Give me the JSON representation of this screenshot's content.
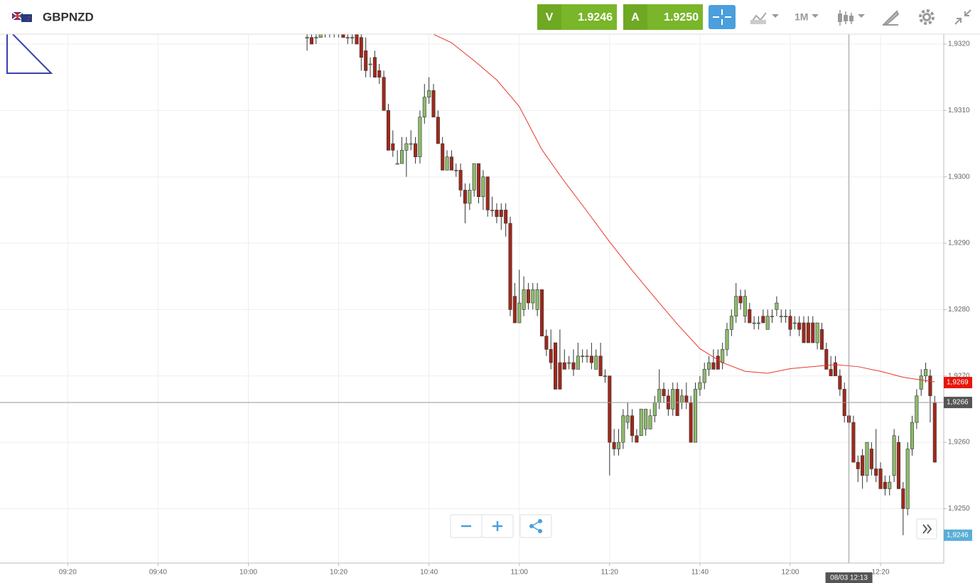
{
  "header": {
    "symbol": "GBPNZD",
    "sell_label": "V",
    "sell_price": 1.9246,
    "buy_label": "A",
    "buy_price": {
      "value": 1.925,
      "label": "1.9250"
    },
    "timeframe": "1M"
  },
  "chart_data": {
    "type": "candlestick",
    "x": [
      "10:13",
      "10:14",
      "10:15",
      "10:16",
      "10:17",
      "10:18",
      "10:19",
      "10:20",
      "10:21",
      "10:22",
      "10:23",
      "10:24",
      "10:25",
      "10:26",
      "10:27",
      "10:28",
      "10:29",
      "10:30",
      "10:31",
      "10:32",
      "10:33",
      "10:34",
      "10:35",
      "10:36",
      "10:37",
      "10:38",
      "10:39",
      "10:40",
      "10:41",
      "10:42",
      "10:43",
      "10:44",
      "10:45",
      "10:46",
      "10:47",
      "10:48",
      "10:49",
      "10:50",
      "10:51",
      "10:52",
      "10:53",
      "10:54",
      "10:55",
      "10:56",
      "10:57",
      "10:58",
      "10:59",
      "11:00",
      "11:01",
      "11:02",
      "11:03",
      "11:04",
      "11:05",
      "11:06",
      "11:07",
      "11:08",
      "11:09",
      "11:10",
      "11:11",
      "11:12",
      "11:13",
      "11:14",
      "11:15",
      "11:16",
      "11:17",
      "11:18",
      "11:19",
      "11:20",
      "11:21",
      "11:22",
      "11:23",
      "11:24",
      "11:25",
      "11:26",
      "11:27",
      "11:28",
      "11:29",
      "11:30",
      "11:31",
      "11:32",
      "11:33",
      "11:34",
      "11:35",
      "11:36",
      "11:37",
      "11:38",
      "11:39",
      "11:40",
      "11:41",
      "11:42",
      "11:43",
      "11:44",
      "11:45",
      "11:46",
      "11:47",
      "11:48",
      "11:49",
      "11:50",
      "11:51",
      "11:52",
      "11:53",
      "11:54",
      "11:55",
      "11:56",
      "11:57",
      "11:58",
      "11:59",
      "12:00",
      "12:01",
      "12:02",
      "12:03",
      "12:04",
      "12:05",
      "12:06",
      "12:07",
      "12:08",
      "12:09",
      "12:10",
      "12:11",
      "12:12",
      "12:13",
      "12:14",
      "12:15",
      "12:16",
      "12:17",
      "12:18",
      "12:19",
      "12:20",
      "12:21",
      "12:22",
      "12:23",
      "12:24",
      "12:25",
      "12:26",
      "12:27",
      "12:28",
      "12:29",
      "12:30",
      "12:31",
      "12:32"
    ],
    "candles": [
      [
        1.9321,
        1.9322,
        1.9319,
        1.9321
      ],
      [
        1.9321,
        1.9322,
        1.932,
        1.932
      ],
      [
        1.9321,
        1.9322,
        1.932,
        1.9321
      ],
      [
        1.9321,
        1.9322,
        1.9321,
        1.9322
      ],
      [
        1.9322,
        1.9323,
        1.9321,
        1.9322
      ],
      [
        1.9322,
        1.9323,
        1.9321,
        1.9322
      ],
      [
        1.9322,
        1.9323,
        1.9321,
        1.9322
      ],
      [
        1.9322,
        1.9323,
        1.9321,
        1.9322
      ],
      [
        1.9322,
        1.9322,
        1.9321,
        1.9321
      ],
      [
        1.9321,
        1.9322,
        1.932,
        1.9321
      ],
      [
        1.9321,
        1.9322,
        1.932,
        1.9321
      ],
      [
        1.9322,
        1.9323,
        1.932,
        1.932
      ],
      [
        1.9321,
        1.9322,
        1.9316,
        1.9318
      ],
      [
        1.9319,
        1.9321,
        1.9315,
        1.9316
      ],
      [
        1.9317,
        1.9318,
        1.9315,
        1.9317
      ],
      [
        1.9318,
        1.9319,
        1.9315,
        1.9315
      ],
      [
        1.9316,
        1.9317,
        1.9314,
        1.9315
      ],
      [
        1.9315,
        1.9316,
        1.931,
        1.931
      ],
      [
        1.931,
        1.9311,
        1.9304,
        1.9304
      ],
      [
        1.9305,
        1.9307,
        1.9303,
        1.9304
      ],
      [
        1.9302,
        1.9304,
        1.9302,
        1.9302
      ],
      [
        1.9302,
        1.9306,
        1.9302,
        1.9304
      ],
      [
        1.9304,
        1.9306,
        1.93,
        1.9305
      ],
      [
        1.9305,
        1.9307,
        1.9304,
        1.9305
      ],
      [
        1.9305,
        1.9306,
        1.9302,
        1.9303
      ],
      [
        1.9303,
        1.931,
        1.9302,
        1.9309
      ],
      [
        1.9309,
        1.9314,
        1.9308,
        1.9312
      ],
      [
        1.9312,
        1.9315,
        1.9311,
        1.9313
      ],
      [
        1.9313,
        1.9314,
        1.9309,
        1.9309
      ],
      [
        1.9309,
        1.931,
        1.9305,
        1.9305
      ],
      [
        1.9305,
        1.9306,
        1.9301,
        1.9301
      ],
      [
        1.9301,
        1.9304,
        1.9301,
        1.9303
      ],
      [
        1.9303,
        1.9304,
        1.9301,
        1.9301
      ],
      [
        1.9301,
        1.9302,
        1.93,
        1.9301
      ],
      [
        1.9301,
        1.9302,
        1.9297,
        1.9298
      ],
      [
        1.9298,
        1.9299,
        1.9293,
        1.9296
      ],
      [
        1.9296,
        1.9299,
        1.9295,
        1.9298
      ],
      [
        1.9298,
        1.9302,
        1.9297,
        1.9302
      ],
      [
        1.9302,
        1.9302,
        1.9296,
        1.9297
      ],
      [
        1.9297,
        1.9301,
        1.9295,
        1.93
      ],
      [
        1.93,
        1.93,
        1.9294,
        1.9295
      ],
      [
        1.9295,
        1.9297,
        1.9294,
        1.9295
      ],
      [
        1.9295,
        1.9296,
        1.9293,
        1.9294
      ],
      [
        1.9295,
        1.9296,
        1.9292,
        1.9294
      ],
      [
        1.9295,
        1.9296,
        1.9291,
        1.9293
      ],
      [
        1.9293,
        1.9294,
        1.9279,
        1.928
      ],
      [
        1.9282,
        1.9284,
        1.9278,
        1.9278
      ],
      [
        1.9278,
        1.9286,
        1.9278,
        1.9281
      ],
      [
        1.928,
        1.9285,
        1.9279,
        1.9283
      ],
      [
        1.9283,
        1.9284,
        1.928,
        1.9281
      ],
      [
        1.9281,
        1.9284,
        1.928,
        1.9283
      ],
      [
        1.928,
        1.9284,
        1.9279,
        1.9283
      ],
      [
        1.9283,
        1.9283,
        1.9276,
        1.9276
      ],
      [
        1.9276,
        1.9277,
        1.9273,
        1.9274
      ],
      [
        1.9274,
        1.9277,
        1.9271,
        1.9272
      ],
      [
        1.9275,
        1.9275,
        1.9268,
        1.9268
      ],
      [
        1.9272,
        1.9277,
        1.9268,
        1.9268
      ],
      [
        1.9272,
        1.9274,
        1.9271,
        1.9271
      ],
      [
        1.9272,
        1.9273,
        1.9271,
        1.9272
      ],
      [
        1.9272,
        1.9274,
        1.927,
        1.9271
      ],
      [
        1.9271,
        1.9275,
        1.9271,
        1.9273
      ],
      [
        1.9273,
        1.9274,
        1.9272,
        1.9273
      ],
      [
        1.9273,
        1.9274,
        1.9272,
        1.9273
      ],
      [
        1.9273,
        1.9275,
        1.9271,
        1.9272
      ],
      [
        1.9271,
        1.9274,
        1.9271,
        1.9273
      ],
      [
        1.9273,
        1.9275,
        1.927,
        1.927
      ],
      [
        1.927,
        1.9271,
        1.9269,
        1.927
      ],
      [
        1.927,
        1.927,
        1.9255,
        1.926
      ],
      [
        1.926,
        1.9262,
        1.9258,
        1.9259
      ],
      [
        1.9259,
        1.9262,
        1.9258,
        1.926
      ],
      [
        1.926,
        1.9265,
        1.9259,
        1.9264
      ],
      [
        1.9263,
        1.9266,
        1.9262,
        1.9264
      ],
      [
        1.9264,
        1.9265,
        1.926,
        1.9261
      ],
      [
        1.9261,
        1.9262,
        1.926,
        1.926
      ],
      [
        1.9261,
        1.9265,
        1.9261,
        1.9265
      ],
      [
        1.9262,
        1.9265,
        1.9261,
        1.9265
      ],
      [
        1.9262,
        1.9265,
        1.9262,
        1.9264
      ],
      [
        1.9264,
        1.9267,
        1.9263,
        1.9266
      ],
      [
        1.9266,
        1.9271,
        1.9265,
        1.9268
      ],
      [
        1.9268,
        1.9269,
        1.9266,
        1.9267
      ],
      [
        1.9267,
        1.9268,
        1.9264,
        1.9265
      ],
      [
        1.9265,
        1.9269,
        1.9264,
        1.9268
      ],
      [
        1.9268,
        1.9269,
        1.9264,
        1.9264
      ],
      [
        1.9266,
        1.9268,
        1.9265,
        1.9267
      ],
      [
        1.9267,
        1.9269,
        1.9265,
        1.9266
      ],
      [
        1.9266,
        1.9267,
        1.926,
        1.926
      ],
      [
        1.926,
        1.9269,
        1.926,
        1.9268
      ],
      [
        1.9268,
        1.927,
        1.9267,
        1.9269
      ],
      [
        1.9269,
        1.9272,
        1.9268,
        1.9271
      ],
      [
        1.9271,
        1.9273,
        1.927,
        1.9272
      ],
      [
        1.9272,
        1.9274,
        1.9271,
        1.9271
      ],
      [
        1.9273,
        1.9274,
        1.9271,
        1.9271
      ],
      [
        1.9272,
        1.9275,
        1.9271,
        1.9274
      ],
      [
        1.9274,
        1.9278,
        1.9273,
        1.9277
      ],
      [
        1.9277,
        1.928,
        1.9276,
        1.9279
      ],
      [
        1.9279,
        1.9284,
        1.9278,
        1.9282
      ],
      [
        1.9282,
        1.9283,
        1.928,
        1.9281
      ],
      [
        1.9279,
        1.9283,
        1.9278,
        1.9282
      ],
      [
        1.928,
        1.9281,
        1.9278,
        1.9278
      ],
      [
        1.9278,
        1.9279,
        1.9277,
        1.9278
      ],
      [
        1.9278,
        1.9279,
        1.9277,
        1.9278
      ],
      [
        1.9279,
        1.928,
        1.9278,
        1.9278
      ],
      [
        1.9277,
        1.928,
        1.9277,
        1.9279
      ],
      [
        1.9279,
        1.928,
        1.9278,
        1.9279
      ],
      [
        1.928,
        1.9282,
        1.9279,
        1.9281
      ],
      [
        1.9279,
        1.928,
        1.9278,
        1.9279
      ],
      [
        1.9279,
        1.928,
        1.9278,
        1.9279
      ],
      [
        1.9279,
        1.928,
        1.9276,
        1.9277
      ],
      [
        1.9278,
        1.9279,
        1.9277,
        1.9278
      ],
      [
        1.9278,
        1.9279,
        1.9276,
        1.9277
      ],
      [
        1.9278,
        1.9279,
        1.9275,
        1.9275
      ],
      [
        1.9278,
        1.9279,
        1.9275,
        1.9275
      ],
      [
        1.9278,
        1.9279,
        1.9275,
        1.9275
      ],
      [
        1.9275,
        1.9278,
        1.9274,
        1.9278
      ],
      [
        1.9277,
        1.9278,
        1.9274,
        1.9274
      ],
      [
        1.9274,
        1.9275,
        1.9271,
        1.9271
      ],
      [
        1.9271,
        1.9273,
        1.927,
        1.927
      ],
      [
        1.9272,
        1.9273,
        1.927,
        1.927
      ],
      [
        1.927,
        1.9271,
        1.9267,
        1.9268
      ],
      [
        1.9268,
        1.9269,
        1.9263,
        1.9264
      ],
      [
        1.9264,
        1.9265,
        1.9262,
        1.9263
      ],
      [
        1.9263,
        1.9264,
        1.9257,
        1.9257
      ],
      [
        1.9257,
        1.9258,
        1.9254,
        1.9256
      ],
      [
        1.9258,
        1.9259,
        1.9253,
        1.9255
      ],
      [
        1.9255,
        1.926,
        1.9254,
        1.926
      ],
      [
        1.9259,
        1.926,
        1.9255,
        1.9256
      ],
      [
        1.9256,
        1.9262,
        1.9254,
        1.9255
      ],
      [
        1.9256,
        1.9257,
        1.9253,
        1.9253
      ],
      [
        1.9254,
        1.9255,
        1.9252,
        1.9253
      ],
      [
        1.9253,
        1.9255,
        1.9252,
        1.9254
      ],
      [
        1.9255,
        1.9262,
        1.9254,
        1.9261
      ],
      [
        1.926,
        1.9261,
        1.9253,
        1.9253
      ],
      [
        1.9253,
        1.9254,
        1.9246,
        1.925
      ],
      [
        1.925,
        1.926,
        1.9249,
        1.9259
      ],
      [
        1.9259,
        1.9264,
        1.9258,
        1.9263
      ],
      [
        1.9263,
        1.9268,
        1.9262,
        1.9267
      ],
      [
        1.9268,
        1.9271,
        1.9267,
        1.927
      ],
      [
        1.927,
        1.9272,
        1.9269,
        1.9271
      ],
      [
        1.927,
        1.9271,
        1.9263,
        1.9267
      ],
      [
        1.9266,
        1.9267,
        1.9257,
        1.9257
      ]
    ],
    "up_color": "#8dbb6b",
    "down_color": "#a1281b",
    "overlay": {
      "type": "line",
      "color": "#e8372a",
      "x": [
        "10:40",
        "10:45",
        "10:50",
        "10:55",
        "11:00",
        "11:05",
        "11:10",
        "11:15",
        "11:20",
        "11:25",
        "11:30",
        "11:35",
        "11:40",
        "11:45",
        "11:50",
        "11:55",
        "12:00",
        "12:05",
        "12:10",
        "12:15",
        "12:20",
        "12:25",
        "12:32"
      ],
      "values": [
        1.93218,
        1.93202,
        1.93175,
        1.93146,
        1.93106,
        1.93041,
        1.92993,
        1.92948,
        1.92902,
        1.92859,
        1.92818,
        1.92778,
        1.92741,
        1.9272,
        1.92707,
        1.92704,
        1.92711,
        1.92714,
        1.92717,
        1.92714,
        1.92707,
        1.92698,
        1.92691
      ]
    },
    "xlim": [
      "09:05",
      "12:34"
    ],
    "xticks": [
      "09:20",
      "09:40",
      "10:00",
      "10:20",
      "10:40",
      "11:00",
      "11:20",
      "11:40",
      "12:00",
      "12:20"
    ],
    "ylim": [
      1.92418,
      1.93215
    ],
    "yticks": [
      {
        "value": 1.925,
        "label": "1,9250"
      },
      {
        "value": 1.926,
        "label": "1,9260"
      },
      {
        "value": 1.927,
        "label": "1,9270"
      },
      {
        "value": 1.928,
        "label": "1,9280"
      },
      {
        "value": 1.929,
        "label": "1,9290"
      },
      {
        "value": 1.93,
        "label": "1,9300"
      },
      {
        "value": 1.931,
        "label": "1,9310"
      },
      {
        "value": 1.932,
        "label": "1,9320"
      }
    ],
    "grid": true,
    "price_markers": [
      {
        "value": 1.9269,
        "label": "1,9269",
        "color": "#e8150c"
      },
      {
        "value": 1.9246,
        "label": "1,9246",
        "color": "#5aaed6"
      }
    ],
    "crosshair": {
      "x": "12:13",
      "x_label": "08/03 12:13",
      "y": 1.9266,
      "y_label": "1,9266",
      "color": "#555555"
    }
  }
}
